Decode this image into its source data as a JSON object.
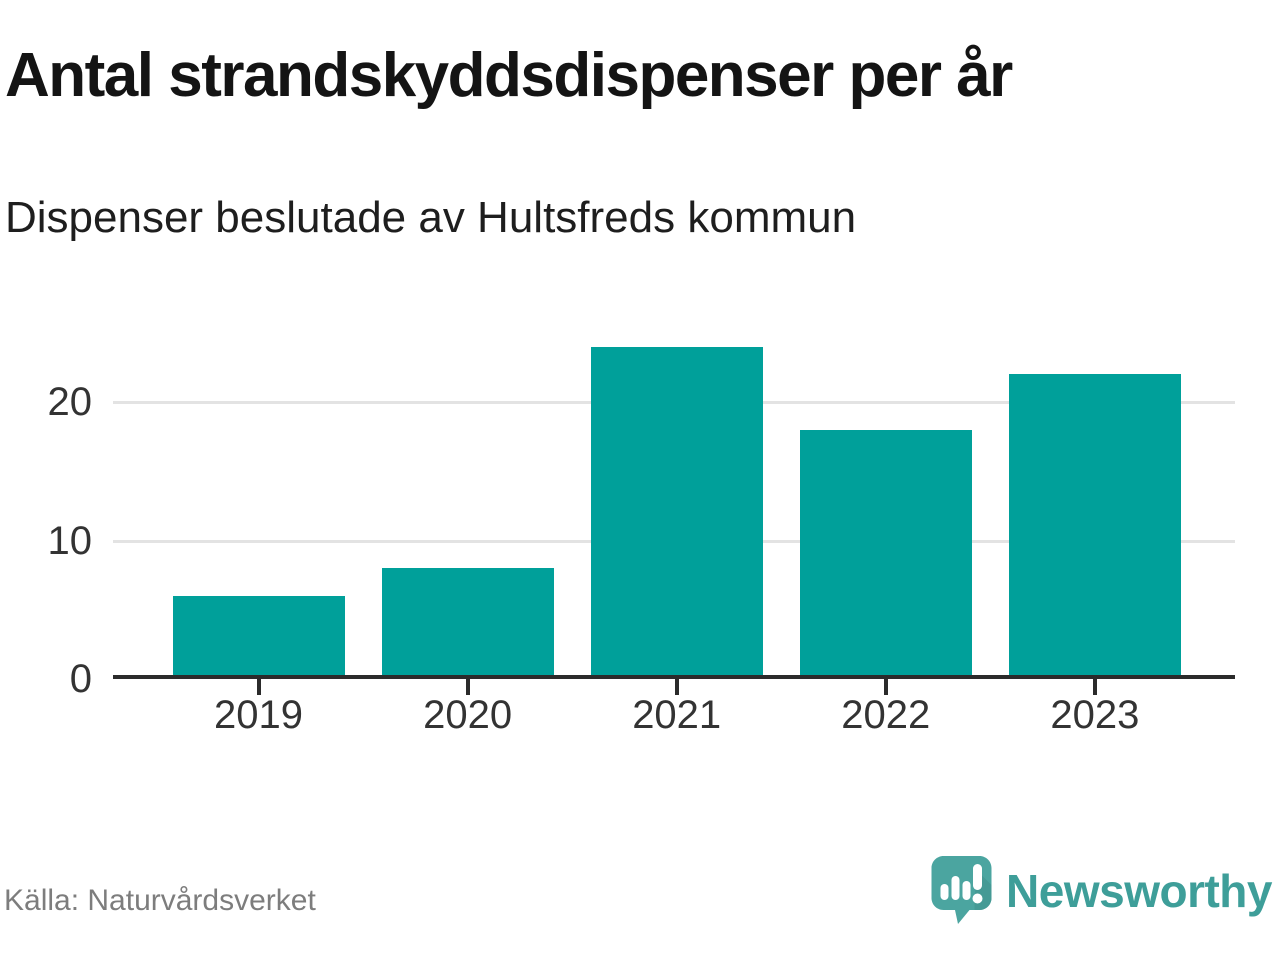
{
  "chart_data": {
    "type": "bar",
    "title": "Antal strandskyddsdispenser per år",
    "subtitle": "Dispenser beslutade av Hultsfreds kommun",
    "categories": [
      "2019",
      "2020",
      "2021",
      "2022",
      "2023"
    ],
    "values": [
      6,
      8,
      24,
      18,
      22
    ],
    "xlabel": "",
    "ylabel": "",
    "ylim": [
      0,
      24
    ],
    "yticks": [
      0,
      10,
      20
    ],
    "grid": "horizontal-only",
    "legend": "none",
    "bar_color": "#00a09a",
    "axis_color": "#2b2b2b",
    "gridline_color": "#e3e3e3"
  },
  "footer": {
    "source": "Källa: Naturvårdsverket",
    "brand_name": "Newsworthy"
  },
  "icons": {
    "logo": "newsworthy-speech-bubble-bar-chart-icon"
  }
}
